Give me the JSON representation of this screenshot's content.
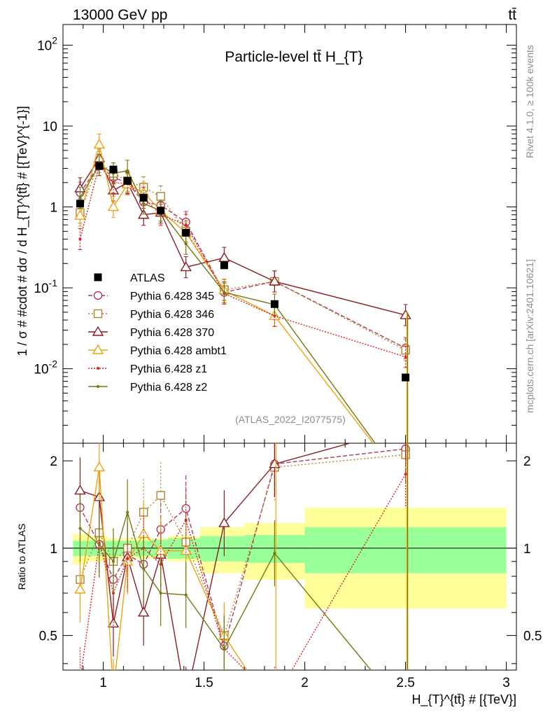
{
  "header": {
    "left": "13000 GeV pp",
    "right": "tt̄"
  },
  "side_labels": {
    "rivet": "Rivet 4.1.0, ≥ 100k events",
    "mcplots": "mcplots.cern.ch [arXiv:2401.10621]"
  },
  "chart_data": {
    "type": "line",
    "title": "Particle-level tt̄ H_{T}",
    "watermark": "(ATLAS_2022_I2077575)",
    "xlabel": "H_{T}^{tt̄} # [{TeV}]",
    "ylabel": "1 / σ # #cdot # dσ / d H_{T}^{tt̄} # [{TeV}^{-1}]",
    "ratio_ylabel": "Ratio to ATLAS",
    "xlim": [
      0.8,
      3.05
    ],
    "ylim": [
      0.0012,
      180
    ],
    "yscale": "log",
    "ratio_ylim": [
      0.38,
      2.3
    ],
    "ratio_yscale": "log",
    "x_ticks": [
      "1",
      "1.5",
      "2",
      "2.5",
      "3"
    ],
    "y_ticks": [
      "10^-2",
      "10^-1",
      "1",
      "10",
      "10^2"
    ],
    "ratio_ticks": [
      "0.5",
      "1",
      "2"
    ],
    "legend_position": "middle-left",
    "bins": [
      [
        0.85,
        0.92
      ],
      [
        0.92,
        1.02
      ],
      [
        1.02,
        1.08
      ],
      [
        1.08,
        1.16
      ],
      [
        1.16,
        1.24
      ],
      [
        1.24,
        1.32
      ],
      [
        1.32,
        1.48
      ],
      [
        1.48,
        1.7
      ],
      [
        1.7,
        2.0
      ],
      [
        2.0,
        3.0
      ]
    ],
    "x": [
      0.885,
      0.98,
      1.05,
      1.12,
      1.2,
      1.285,
      1.41,
      1.6,
      1.85,
      2.5
    ],
    "data": {
      "name": "ATLAS",
      "values": [
        1.1,
        3.2,
        2.9,
        2.1,
        1.3,
        0.9,
        0.48,
        0.19,
        0.063,
        0.0078
      ],
      "stat_band": [
        0.06,
        0.06,
        0.06,
        0.06,
        0.06,
        0.07,
        0.08,
        0.1,
        0.11,
        0.18
      ],
      "total_band": [
        0.12,
        0.1,
        0.08,
        0.08,
        0.08,
        0.08,
        0.1,
        0.18,
        0.22,
        0.38
      ]
    },
    "series": [
      {
        "name": "Pythia 6.428 345",
        "color": "#b03a5a",
        "marker": "circle",
        "dash": "6,3",
        "values": [
          1.5,
          3.3,
          2.3,
          2.0,
          1.15,
          1.05,
          0.65,
          0.088,
          0.12,
          0.018
        ],
        "ratio": [
          1.38,
          1.03,
          0.78,
          0.95,
          0.88,
          1.16,
          1.37,
          0.46,
          1.95,
          2.2
        ]
      },
      {
        "name": "Pythia 6.428 346",
        "color": "#b08030",
        "marker": "square",
        "dash": "2,3",
        "values": [
          0.85,
          3.6,
          2.6,
          2.1,
          1.75,
          1.35,
          0.5,
          0.095,
          0.12,
          0.017
        ],
        "ratio": [
          0.78,
          1.13,
          0.9,
          1.0,
          1.33,
          1.52,
          1.05,
          0.5,
          1.9,
          2.1
        ]
      },
      {
        "name": "Pythia 6.428 370",
        "color": "#8b1c24",
        "marker": "triangle",
        "dash": "",
        "values": [
          1.7,
          4.0,
          1.6,
          2.0,
          0.8,
          0.85,
          0.18,
          0.235,
          0.12,
          0.046
        ],
        "ratio": [
          1.58,
          1.5,
          0.55,
          0.93,
          0.6,
          0.95,
          0.3,
          1.22,
          1.95,
          2.6
        ]
      },
      {
        "name": "Pythia 6.428 ambt1",
        "color": "#f0a010",
        "marker": "triangle",
        "dash": "",
        "values": [
          0.78,
          5.9,
          1.0,
          1.9,
          1.5,
          0.9,
          0.48,
          0.093,
          0.045,
          0.0
        ],
        "ratio": [
          0.72,
          1.9,
          0.32,
          0.9,
          1.12,
          0.98,
          0.98,
          0.5,
          0.0,
          0.0
        ]
      },
      {
        "name": "Pythia 6.428 z1",
        "color": "#e02020",
        "marker": "dot",
        "dash": "2,2",
        "values": [
          0.4,
          3.3,
          2.0,
          1.95,
          1.3,
          0.8,
          0.6,
          0.085,
          0.045,
          0.014
        ],
        "ratio": [
          0.35,
          1.04,
          0.7,
          0.92,
          1.0,
          0.88,
          1.25,
          0.45,
          0.3,
          1.8
        ]
      },
      {
        "name": "Pythia 6.428 z2",
        "color": "#6f7a10",
        "marker": "dot",
        "dash": "",
        "values": [
          1.3,
          3.3,
          2.6,
          2.8,
          1.1,
          0.9,
          0.35,
          0.088,
          0.062,
          0.0
        ],
        "ratio": [
          1.17,
          1.03,
          0.9,
          1.33,
          0.85,
          0.7,
          0.69,
          0.45,
          0.96,
          0.0
        ]
      }
    ]
  }
}
